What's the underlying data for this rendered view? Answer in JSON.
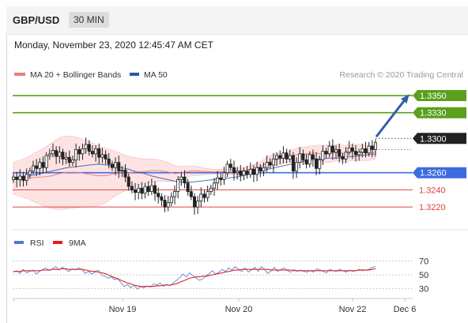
{
  "header": {
    "pair": "GBP/USD",
    "timeframe": "30 MIN"
  },
  "timestamp": "Monday, November 23, 2020 12:45:47 AM CET",
  "legend": {
    "ma20": "MA 20 + Bollinger Bands",
    "ma50": "MA 50",
    "research": "Research © 2020 Trading Central"
  },
  "rsi_legend": {
    "rsi": "RSI",
    "ma": "9MA"
  },
  "colors": {
    "green": "#5aa01c",
    "blue": "#3d6be0",
    "red": "#e04040",
    "candle": "#222222",
    "band": "#fdd9d9",
    "arrow": "#2f5fa8"
  },
  "chart_data": [
    {
      "type": "candlestick",
      "symbol": "GBP/USD",
      "interval": "30 MIN",
      "x_tick_labels": [
        "Nov 19",
        "Nov 20",
        "Nov 22",
        "Dec 6"
      ],
      "ylim": [
        1.3198,
        1.3362
      ],
      "levels": [
        {
          "value": 1.335,
          "label": "1.3350",
          "color": "#5aa01c",
          "kind": "resistance"
        },
        {
          "value": 1.333,
          "label": "1.3330",
          "color": "#5aa01c",
          "kind": "resistance"
        },
        {
          "value": 1.33,
          "label": "1.3300",
          "color": "#222222",
          "kind": "last"
        },
        {
          "value": 1.326,
          "label": "1.3260",
          "color": "#3d6be0",
          "kind": "pivot"
        },
        {
          "value": 1.324,
          "label": "1.3240",
          "color": "#e04040",
          "kind": "support"
        },
        {
          "value": 1.322,
          "label": "1.3220",
          "color": "#e04040",
          "kind": "support"
        }
      ],
      "close": [
        1.3255,
        1.3252,
        1.3256,
        1.3251,
        1.3258,
        1.3262,
        1.3268,
        1.3265,
        1.3272,
        1.3266,
        1.328,
        1.3282,
        1.3286,
        1.3279,
        1.3284,
        1.3276,
        1.3278,
        1.3272,
        1.3275,
        1.3287,
        1.3282,
        1.3288,
        1.3293,
        1.3285,
        1.3282,
        1.3288,
        1.3278,
        1.3281,
        1.3276,
        1.327,
        1.3266,
        1.3272,
        1.3262,
        1.3263,
        1.3255,
        1.3244,
        1.324,
        1.3237,
        1.3242,
        1.3236,
        1.3244,
        1.3238,
        1.3245,
        1.3236,
        1.3232,
        1.3228,
        1.322,
        1.3225,
        1.3232,
        1.3238,
        1.3252,
        1.3255,
        1.3248,
        1.3238,
        1.3232,
        1.322,
        1.3227,
        1.3235,
        1.3231,
        1.3238,
        1.3242,
        1.3248,
        1.3254,
        1.3252,
        1.326,
        1.327,
        1.3266,
        1.326,
        1.3262,
        1.3257,
        1.3262,
        1.3258,
        1.3264,
        1.3258,
        1.3266,
        1.3262,
        1.3266,
        1.3272,
        1.3269,
        1.3276,
        1.328,
        1.3277,
        1.3283,
        1.3276,
        1.328,
        1.3262,
        1.3272,
        1.3282,
        1.3275,
        1.327,
        1.3281,
        1.3276,
        1.3265,
        1.3275,
        1.3285,
        1.3282,
        1.3291,
        1.3284,
        1.3287,
        1.3279,
        1.3276,
        1.3284,
        1.3289,
        1.3285,
        1.3281,
        1.3284,
        1.3288,
        1.3283,
        1.3291,
        1.3287,
        1.3295
      ],
      "ma20_bollinger": {
        "upper": [
          1.3272,
          1.3275,
          1.3279,
          1.3284,
          1.3289,
          1.3295,
          1.3301,
          1.3303,
          1.3302,
          1.3299,
          1.3296,
          1.3291,
          1.3288,
          1.3286,
          1.3282,
          1.3279,
          1.3277,
          1.3276,
          1.3276,
          1.3275,
          1.3272,
          1.3268,
          1.3267,
          1.3268,
          1.3267,
          1.3265,
          1.3264,
          1.3264,
          1.3264,
          1.3265,
          1.3266,
          1.3269,
          1.3272,
          1.3279,
          1.3282,
          1.3283,
          1.3286,
          1.3289,
          1.329,
          1.3292,
          1.3292,
          1.3292,
          1.3293,
          1.3292,
          1.3293,
          1.3293,
          1.3292,
          1.3292
        ],
        "lower": [
          1.3235,
          1.3232,
          1.3229,
          1.3225,
          1.3221,
          1.3218,
          1.3217,
          1.3218,
          1.3219,
          1.322,
          1.322,
          1.3222,
          1.3225,
          1.3232,
          1.3237,
          1.3241,
          1.3245,
          1.3247,
          1.3249,
          1.325,
          1.325,
          1.325,
          1.3253,
          1.3256,
          1.3257,
          1.3258,
          1.3258,
          1.3259,
          1.3258,
          1.3258,
          1.3259,
          1.3261,
          1.3262,
          1.3265,
          1.3268,
          1.3271,
          1.3273,
          1.3274,
          1.3274,
          1.3274,
          1.3272,
          1.3272,
          1.3274,
          1.3273,
          1.3274,
          1.3274,
          1.3274,
          1.3276
        ]
      },
      "ma50": [
        1.3252,
        1.3254,
        1.3256,
        1.3258,
        1.326,
        1.3262,
        1.3264,
        1.3266,
        1.3267,
        1.3268,
        1.3269,
        1.327,
        1.3269,
        1.3268,
        1.3266,
        1.3264,
        1.3261,
        1.3259,
        1.3256,
        1.3254,
        1.3252,
        1.325,
        1.3249,
        1.3249,
        1.325,
        1.3251,
        1.3252,
        1.3253,
        1.3254,
        1.3255,
        1.3257,
        1.3259,
        1.3262,
        1.3264,
        1.3266,
        1.3268,
        1.327,
        1.3272,
        1.3274,
        1.3276,
        1.3276,
        1.3277,
        1.3277,
        1.3278,
        1.3279,
        1.328,
        1.3281,
        1.3282
      ],
      "forecast": {
        "from": 1.3302,
        "to": 1.335
      }
    },
    {
      "type": "line",
      "title": "RSI",
      "ylim": [
        20,
        80
      ],
      "y_tick_labels": [
        "70",
        "50",
        "30"
      ],
      "series": [
        {
          "name": "RSI",
          "color": "#4d79d6",
          "values": [
            54,
            56,
            52,
            58,
            53,
            55,
            57,
            51,
            55,
            58,
            60,
            56,
            59,
            62,
            57,
            61,
            58,
            55,
            59,
            57,
            60,
            58,
            52,
            55,
            51,
            54,
            57,
            50,
            48,
            45,
            47,
            43,
            45,
            38,
            33,
            36,
            31,
            35,
            29,
            33,
            31,
            34,
            32,
            37,
            35,
            38,
            33,
            36,
            34,
            38,
            42,
            46,
            51,
            47,
            53,
            49,
            45,
            42,
            44,
            48,
            52,
            56,
            51,
            54,
            58,
            55,
            60,
            57,
            62,
            58,
            55,
            60,
            54,
            57,
            61,
            55,
            62,
            58,
            52,
            56,
            61,
            55,
            58,
            60,
            56,
            54,
            58,
            55,
            57,
            55,
            54,
            56,
            54,
            59,
            57,
            55,
            53,
            58,
            56,
            55,
            58,
            56,
            54,
            57,
            55,
            56,
            58,
            56,
            57,
            58,
            61,
            62
          ]
        },
        {
          "name": "9MA",
          "color": "#e02020",
          "values": [
            55,
            55,
            55,
            56,
            56,
            56,
            56,
            56,
            56,
            57,
            57,
            57,
            58,
            58,
            58,
            59,
            59,
            58,
            58,
            58,
            58,
            58,
            57,
            56,
            55,
            55,
            54,
            53,
            52,
            50,
            48,
            46,
            44,
            42,
            40,
            38,
            37,
            35,
            34,
            33,
            33,
            33,
            33,
            33,
            34,
            34,
            35,
            35,
            35,
            36,
            37,
            39,
            41,
            43,
            45,
            46,
            47,
            47,
            48,
            48,
            49,
            50,
            51,
            52,
            53,
            54,
            55,
            56,
            57,
            57,
            58,
            58,
            58,
            58,
            58,
            58,
            58,
            58,
            58,
            57,
            57,
            57,
            57,
            57,
            57,
            57,
            56,
            56,
            56,
            56,
            56,
            56,
            56,
            56,
            56,
            56,
            56,
            56,
            56,
            56,
            56,
            56,
            56,
            56,
            56,
            56,
            57,
            57,
            57,
            57,
            58,
            59
          ]
        }
      ]
    }
  ]
}
